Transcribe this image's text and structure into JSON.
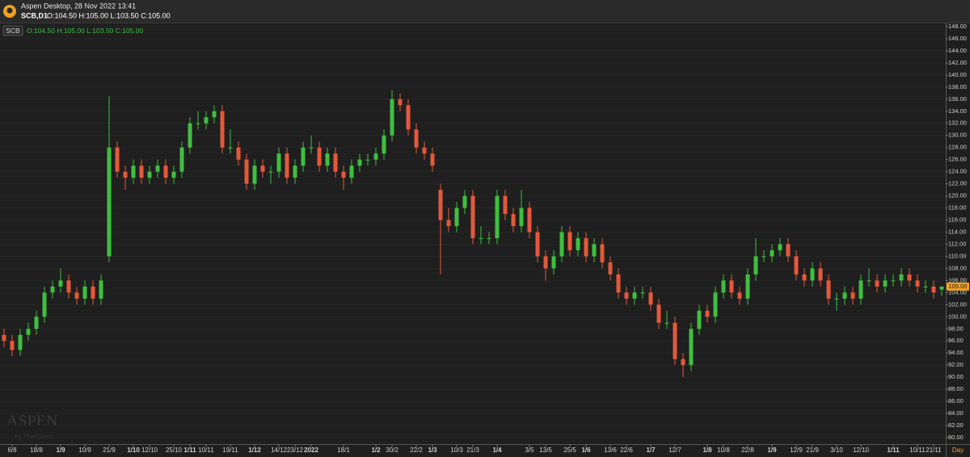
{
  "header": {
    "app_title": "Aspen Desktop, 28 Nov 2022 13:41",
    "symbol": "SCB,D1",
    "ohlc": "O:104.50 H:105.00 L:103.50 C:105.00"
  },
  "chart_data": {
    "type": "candlestick",
    "legend_symbol": "SCB",
    "legend_ohlc": "O:104.50 H:105.00 L:103.50 C:105.00",
    "watermark": "ASPEN",
    "watermark_sub": "by ThaiQuest",
    "x_unit": "Day",
    "last_price_label": "105.00",
    "up_color": "#3fbf3f",
    "down_color": "#e4583a",
    "grid": true,
    "ylim": [
      79.4,
      148.6
    ],
    "yticks": [
      {
        "value": 80,
        "label": "80.00"
      },
      {
        "value": 82,
        "label": "82.00"
      },
      {
        "value": 84,
        "label": "84.00"
      },
      {
        "value": 86,
        "label": "86.00"
      },
      {
        "value": 88,
        "label": "88.00"
      },
      {
        "value": 90,
        "label": "90.00"
      },
      {
        "value": 92,
        "label": "92.00"
      },
      {
        "value": 94,
        "label": "94.00"
      },
      {
        "value": 96,
        "label": "96.00"
      },
      {
        "value": 98,
        "label": "98.00"
      },
      {
        "value": 100,
        "label": "100.00"
      },
      {
        "value": 102,
        "label": "102.00"
      },
      {
        "value": 104,
        "label": "104.00"
      },
      {
        "value": 106,
        "label": "106.00"
      },
      {
        "value": 108,
        "label": "108.00"
      },
      {
        "value": 110,
        "label": "110.00"
      },
      {
        "value": 112,
        "label": "112.00"
      },
      {
        "value": 114,
        "label": "114.00"
      },
      {
        "value": 116,
        "label": "116.00"
      },
      {
        "value": 118,
        "label": "118.00"
      },
      {
        "value": 120,
        "label": "120.00"
      },
      {
        "value": 122,
        "label": "122.00"
      },
      {
        "value": 124,
        "label": "124.00"
      },
      {
        "value": 126,
        "label": "126.00"
      },
      {
        "value": 128,
        "label": "128.00"
      },
      {
        "value": 130,
        "label": "130.00"
      },
      {
        "value": 132,
        "label": "132.00"
      },
      {
        "value": 134,
        "label": "134.00"
      },
      {
        "value": 136,
        "label": "136.00"
      },
      {
        "value": 138,
        "label": "138.00"
      },
      {
        "value": 140,
        "label": "140.00"
      },
      {
        "value": 142,
        "label": "142.00"
      },
      {
        "value": 144,
        "label": "144.00"
      },
      {
        "value": 146,
        "label": "146.00"
      },
      {
        "value": 148,
        "label": "148.00"
      }
    ],
    "categories": [
      null,
      "6/8",
      null,
      null,
      "18/8",
      null,
      null,
      "1/9",
      null,
      null,
      "10/9",
      null,
      null,
      "21/9",
      null,
      null,
      "1/10",
      null,
      "12/10",
      null,
      null,
      "25/10",
      null,
      "1/11",
      null,
      "10/11",
      null,
      null,
      "19/11",
      null,
      null,
      "1/12",
      null,
      null,
      "14/12",
      null,
      "23/12",
      null,
      "2022",
      null,
      null,
      null,
      "18/1",
      null,
      null,
      null,
      "1/2",
      null,
      "30/2",
      null,
      null,
      "22/2",
      null,
      "1/3",
      null,
      null,
      "10/3",
      null,
      "21/3",
      null,
      null,
      "1/4",
      null,
      null,
      null,
      "3/5",
      null,
      "13/5",
      null,
      null,
      "25/5",
      null,
      "1/6",
      null,
      null,
      "13/6",
      null,
      "22/6",
      null,
      null,
      "1/7",
      null,
      null,
      "12/7",
      null,
      null,
      null,
      "1/8",
      null,
      "10/8",
      null,
      null,
      "22/8",
      null,
      null,
      "1/9",
      null,
      null,
      "12/9",
      null,
      "21/9",
      null,
      null,
      "3/10",
      null,
      null,
      "12/10",
      null,
      null,
      null,
      "1/11",
      null,
      null,
      "10/11",
      null,
      "21/11",
      null
    ],
    "open": [
      97,
      96,
      94.5,
      97,
      98,
      100,
      104,
      105,
      106,
      104,
      103,
      105,
      103,
      110,
      128,
      124,
      123,
      125,
      123,
      124,
      125,
      123,
      124,
      128,
      132,
      132,
      133,
      134,
      128,
      128,
      126,
      122,
      125,
      124,
      124,
      127,
      123,
      125,
      128,
      128,
      125,
      127,
      124,
      123,
      125,
      126,
      126,
      127,
      130,
      136,
      135,
      131,
      128,
      127,
      121,
      116,
      115,
      118,
      120,
      113,
      113,
      113,
      120,
      117,
      115,
      118,
      114,
      110,
      108,
      110,
      114,
      111,
      113,
      110,
      112,
      109,
      107,
      104,
      103,
      104,
      104,
      102,
      99,
      99,
      93,
      92,
      98,
      101,
      100,
      104,
      106,
      104,
      103,
      107,
      110,
      110,
      111,
      112,
      110,
      107,
      106,
      108,
      106,
      103,
      103,
      104,
      103,
      106,
      106,
      105,
      106,
      106,
      107,
      106,
      105,
      105,
      104.5
    ],
    "high": [
      98,
      97,
      98,
      99,
      101,
      105,
      106,
      108,
      107,
      105,
      106,
      106,
      107,
      136.5,
      129,
      125,
      126,
      126,
      125,
      126,
      126,
      125,
      129,
      133,
      134,
      134,
      135,
      135,
      131,
      129,
      127,
      126,
      126,
      125,
      128,
      128,
      126,
      129,
      130,
      129,
      128,
      128,
      125,
      126,
      127,
      127,
      128,
      131,
      137.5,
      137,
      136,
      132,
      129,
      128,
      122,
      118,
      119,
      121,
      121,
      115,
      114,
      121,
      121,
      118,
      121,
      119,
      115,
      111,
      111,
      115,
      115,
      114,
      114,
      113,
      113,
      110,
      108,
      105,
      105,
      105,
      105,
      103,
      101,
      100,
      94,
      99,
      102,
      102,
      105,
      107,
      107,
      105,
      108,
      113,
      111,
      112,
      113,
      113,
      111,
      108,
      109,
      109,
      107,
      104,
      105,
      105,
      107,
      108,
      107,
      107,
      107,
      108,
      108,
      107,
      106,
      106,
      105
    ],
    "low": [
      95,
      93.5,
      93.5,
      96,
      97,
      99,
      103,
      104,
      103,
      102,
      102,
      102,
      102,
      109,
      123,
      121,
      122,
      122,
      122,
      123,
      122,
      122,
      123,
      127,
      131,
      131,
      132,
      127,
      127,
      125,
      121,
      121,
      123,
      122,
      123,
      122,
      122,
      124,
      127,
      124,
      124,
      123,
      121,
      122,
      124,
      125,
      125,
      126,
      129,
      134,
      130,
      127,
      126,
      124,
      107,
      114,
      114,
      117,
      112,
      112,
      112,
      112,
      116,
      114,
      114,
      113,
      109,
      106,
      107,
      109,
      110,
      110,
      109,
      109,
      108,
      106,
      103,
      102,
      102,
      103,
      101,
      98,
      98,
      92,
      90,
      91,
      97,
      99,
      99,
      103,
      103,
      102,
      102,
      106,
      109,
      109,
      110,
      109,
      106,
      105,
      105,
      105,
      102,
      101,
      102,
      102,
      102,
      105,
      104,
      104,
      105,
      105,
      105,
      104,
      104,
      103,
      103.5
    ],
    "close": [
      96,
      94.5,
      97,
      98,
      100,
      104,
      105,
      106,
      104,
      103,
      105,
      103,
      106,
      128,
      124,
      123,
      125,
      123,
      124,
      125,
      123,
      124,
      128,
      132,
      132,
      133,
      134,
      128,
      128,
      126,
      122,
      125,
      124,
      124,
      127,
      123,
      125,
      128,
      128,
      125,
      127,
      124,
      123,
      125,
      126,
      126,
      127,
      130,
      136,
      135,
      131,
      128,
      127,
      125,
      116,
      115,
      118,
      120,
      113,
      113,
      113,
      120,
      117,
      115,
      118,
      114,
      110,
      108,
      110,
      114,
      111,
      113,
      110,
      112,
      109,
      107,
      104,
      103,
      104,
      104,
      102,
      99,
      99,
      93,
      92,
      98,
      101,
      100,
      104,
      106,
      104,
      103,
      107,
      110,
      110,
      111,
      112,
      110,
      107,
      106,
      108,
      106,
      103,
      103,
      104,
      103,
      106,
      106,
      105,
      106,
      106,
      107,
      106,
      105,
      105,
      104,
      105
    ]
  }
}
